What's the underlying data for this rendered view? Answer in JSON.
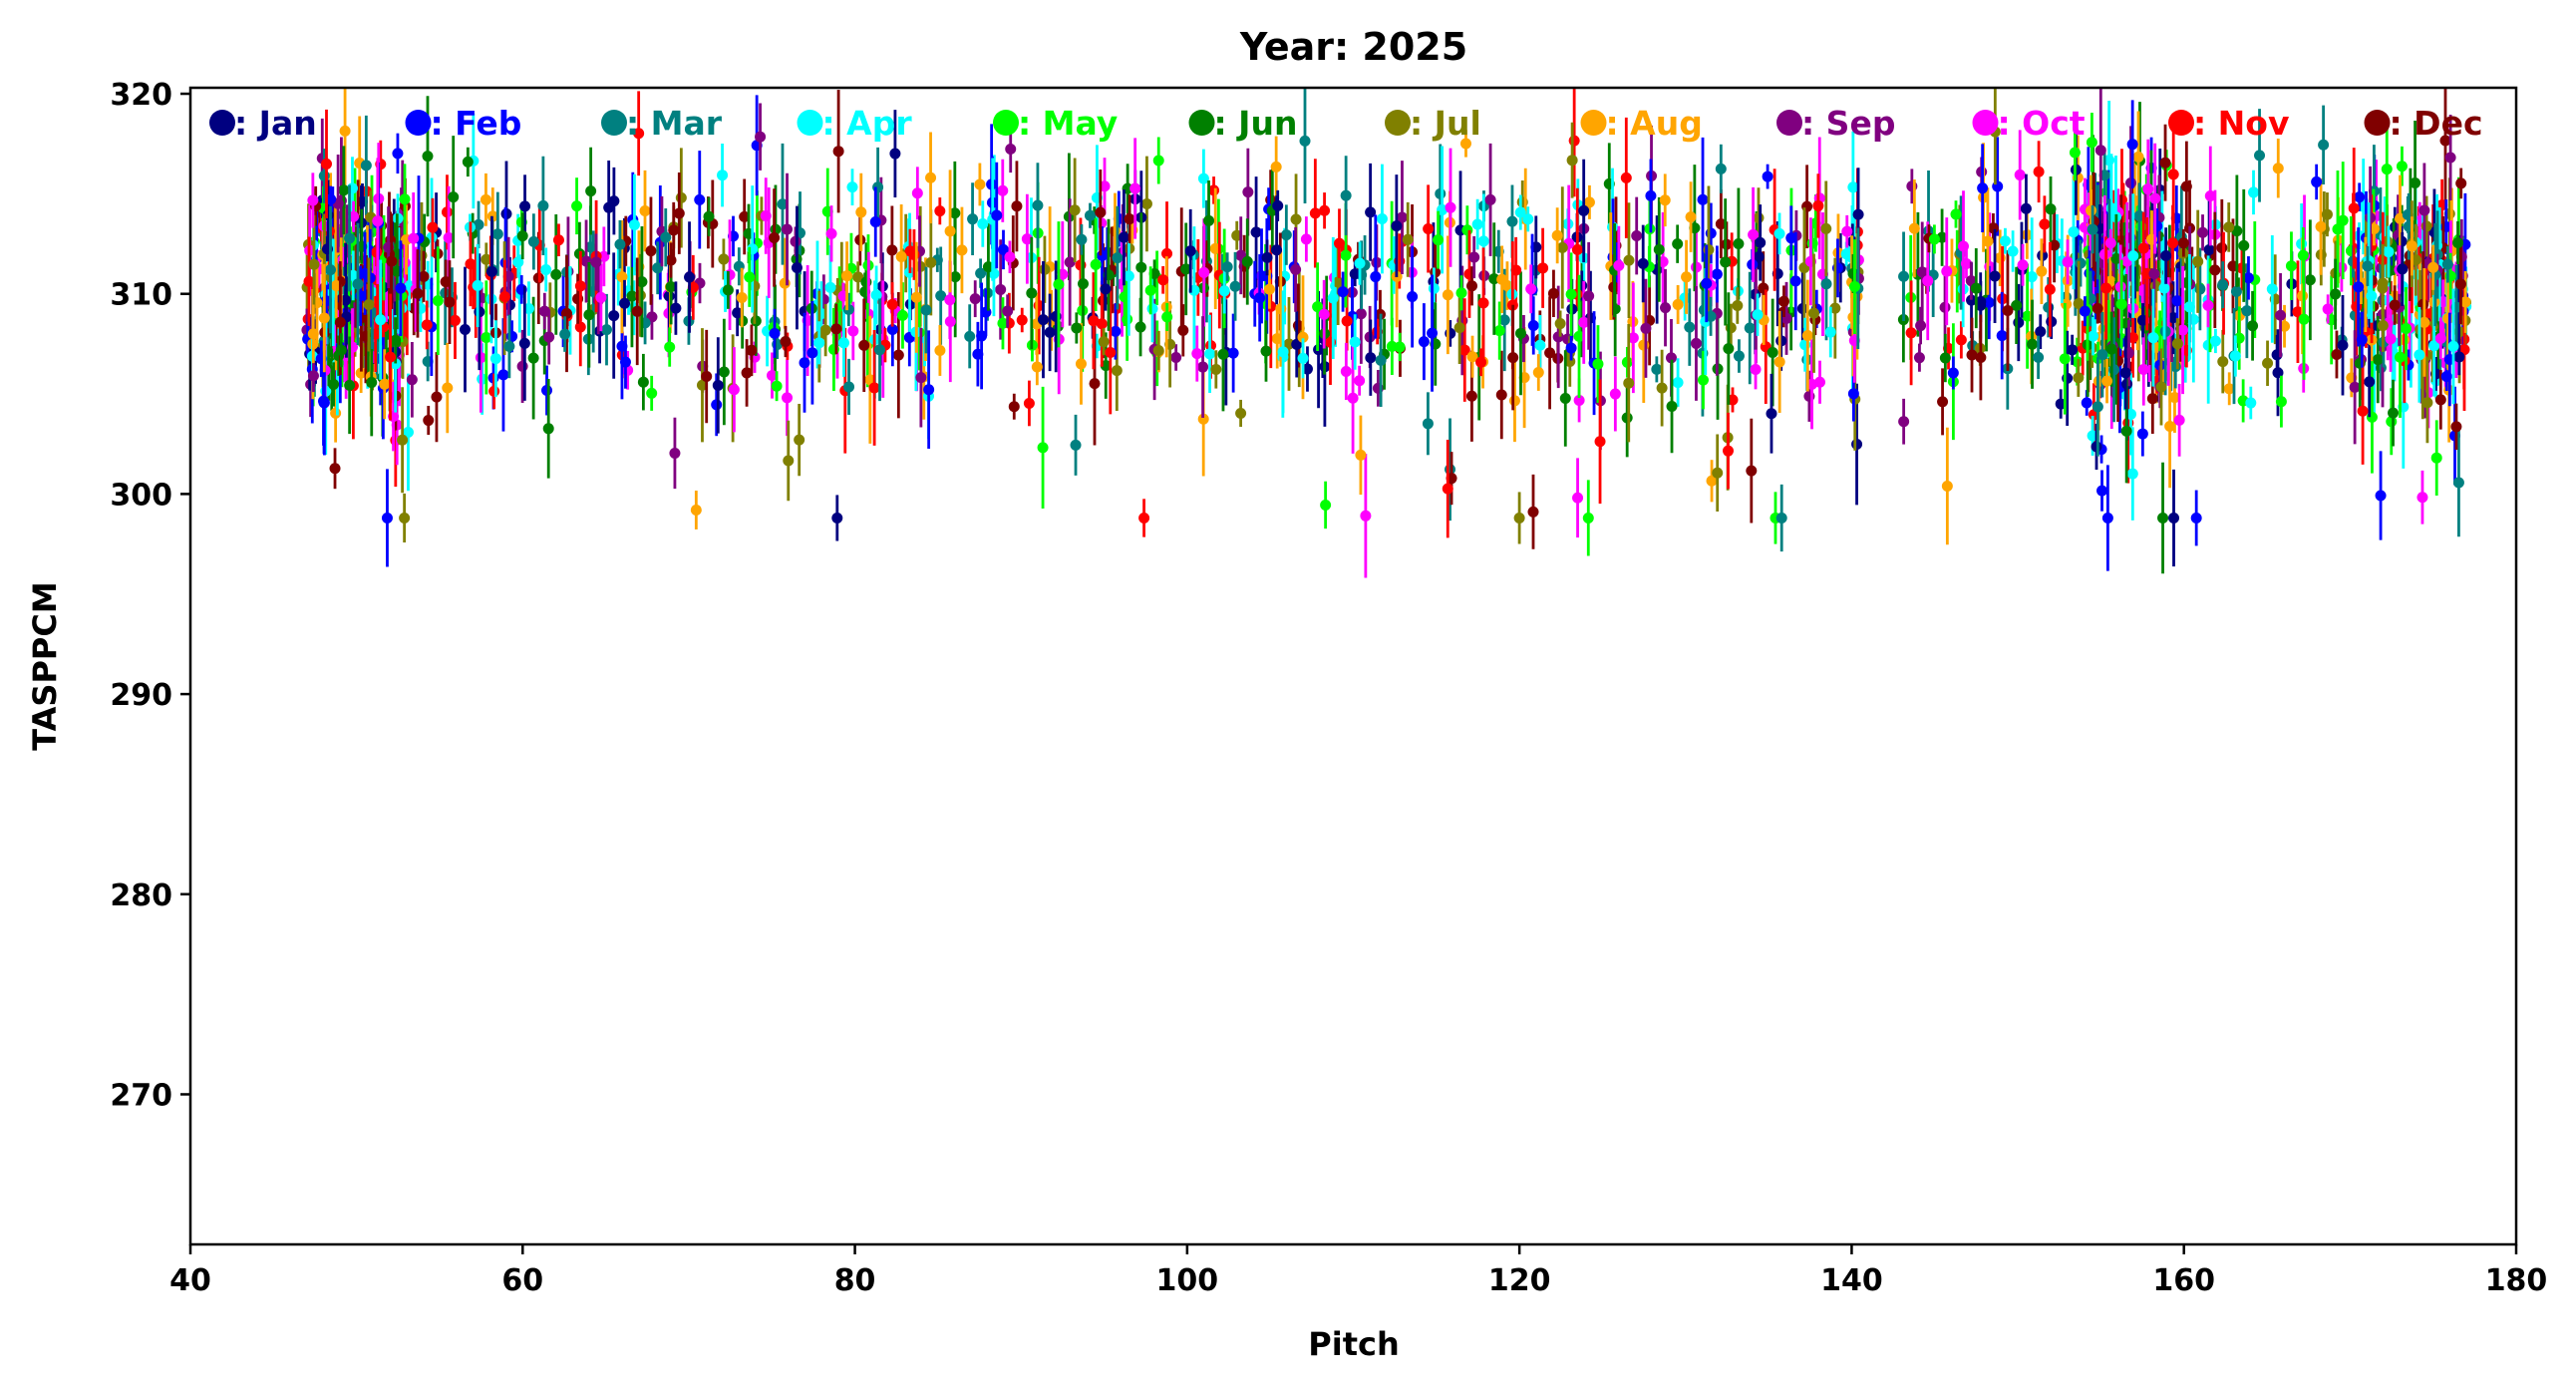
{
  "chart_data": {
    "type": "scatter",
    "title": "Year: 2025",
    "xlabel": "Pitch",
    "ylabel": "TASPPCM",
    "xlim": [
      40,
      180
    ],
    "ylim": [
      262.5,
      320.3
    ],
    "xticks": [
      40,
      60,
      80,
      100,
      120,
      140,
      160,
      180
    ],
    "yticks": [
      270,
      280,
      290,
      300,
      310,
      320
    ],
    "grid": false,
    "legend_position": "top, inside, single row",
    "error_bars": true,
    "points_per_series_visible": "dense, ~150 points per month across x 47–177, y ~299–320",
    "series": [
      {
        "name": ": Jan",
        "color": "#000080"
      },
      {
        "name": ": Feb",
        "color": "#0000ff"
      },
      {
        "name": ": Mar",
        "color": "#008080"
      },
      {
        "name": ": Apr",
        "color": "#00ffff"
      },
      {
        "name": ": May",
        "color": "#00ff00"
      },
      {
        "name": ": Jun",
        "color": "#008000"
      },
      {
        "name": ": Jul",
        "color": "#808000"
      },
      {
        "name": ": Aug",
        "color": "#ffa500"
      },
      {
        "name": ": Sep",
        "color": "#800080"
      },
      {
        "name": ": Oct",
        "color": "#ff00ff"
      },
      {
        "name": ": Nov",
        "color": "#ff0000"
      },
      {
        "name": ": Dec",
        "color": "#800000"
      }
    ]
  }
}
